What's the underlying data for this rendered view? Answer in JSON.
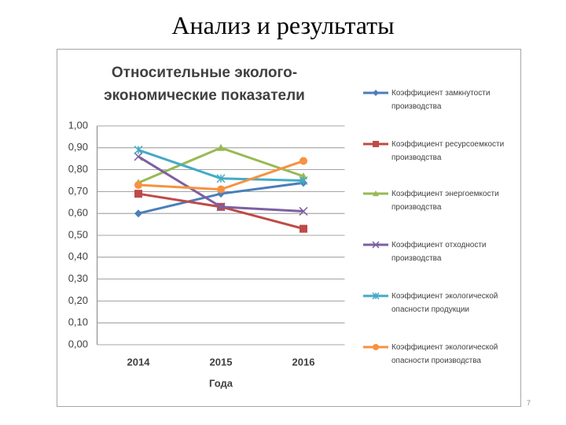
{
  "slide": {
    "title": "Анализ и результаты",
    "page_number": 7
  },
  "chart_data": {
    "type": "line",
    "title": "Относительные эколого-экономические показатели",
    "xlabel": "Года",
    "categories": [
      "2014",
      "2015",
      "2016"
    ],
    "ylim": [
      0,
      1
    ],
    "yticks": [
      {
        "value": 0,
        "label": "0,00"
      },
      {
        "value": 0.1,
        "label": "0,10"
      },
      {
        "value": 0.2,
        "label": "0,20"
      },
      {
        "value": 0.3,
        "label": "0,30"
      },
      {
        "value": 0.4,
        "label": "0,40"
      },
      {
        "value": 0.5,
        "label": "0,50"
      },
      {
        "value": 0.6,
        "label": "0,60"
      },
      {
        "value": 0.7,
        "label": "0,70"
      },
      {
        "value": 0.8,
        "label": "0,80"
      },
      {
        "value": 0.9,
        "label": "0,90"
      },
      {
        "value": 1,
        "label": "1,00"
      }
    ],
    "grid": true,
    "legend": "right",
    "series": [
      {
        "name": "Коэффициент замкнутости производства",
        "color": "#4a7ebb",
        "marker": "diamond",
        "values": [
          0.6,
          0.69,
          0.74
        ]
      },
      {
        "name": "Коэффициент ресурсоемкости производства",
        "color": "#be4b48",
        "marker": "square",
        "values": [
          0.69,
          0.63,
          0.53
        ]
      },
      {
        "name": "Коэффициент энергоемкости производства",
        "color": "#98b954",
        "marker": "triangle",
        "values": [
          0.74,
          0.9,
          0.77
        ]
      },
      {
        "name": "Коэффициент отходности производства",
        "color": "#7d60a0",
        "marker": "x",
        "values": [
          0.86,
          0.63,
          0.61
        ]
      },
      {
        "name": "Коэффициент экологической опасности продукции",
        "color": "#46aac5",
        "marker": "star",
        "values": [
          0.89,
          0.76,
          0.75
        ]
      },
      {
        "name": "Коэффициент экологической опасности производства",
        "color": "#f69240",
        "marker": "circle",
        "values": [
          0.73,
          0.71,
          0.84
        ]
      }
    ]
  }
}
